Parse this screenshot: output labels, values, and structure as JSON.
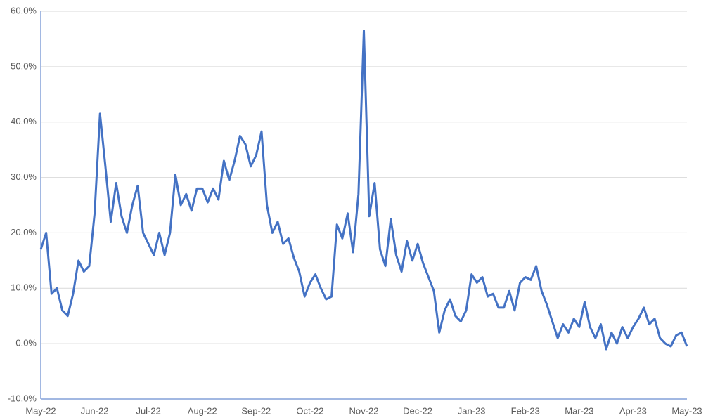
{
  "chart_data": {
    "type": "line",
    "color": "#4472c4",
    "grid": true,
    "categories": [
      "May-22",
      null,
      null,
      null,
      null,
      null,
      null,
      null,
      null,
      null,
      "Jun-22",
      null,
      null,
      null,
      null,
      null,
      null,
      null,
      null,
      null,
      "Jul-22",
      null,
      null,
      null,
      null,
      null,
      null,
      null,
      null,
      null,
      "Aug-22",
      null,
      null,
      null,
      null,
      null,
      null,
      null,
      null,
      null,
      "Sep-22",
      null,
      null,
      null,
      null,
      null,
      null,
      null,
      null,
      null,
      "Oct-22",
      null,
      null,
      null,
      null,
      null,
      null,
      null,
      null,
      null,
      "Nov-22",
      null,
      null,
      null,
      null,
      null,
      null,
      null,
      null,
      null,
      "Dec-22",
      null,
      null,
      null,
      null,
      null,
      null,
      null,
      null,
      null,
      "Jan-23",
      null,
      null,
      null,
      null,
      null,
      null,
      null,
      null,
      null,
      "Feb-23",
      null,
      null,
      null,
      null,
      null,
      null,
      null,
      null,
      null,
      "Mar-23",
      null,
      null,
      null,
      null,
      null,
      null,
      null,
      null,
      null,
      "Apr-23",
      null,
      null,
      null,
      null,
      null,
      null,
      null,
      null,
      null,
      "May-23"
    ],
    "values": [
      17,
      20,
      9,
      10,
      6,
      5,
      9,
      15,
      13,
      14,
      23.5,
      41.5,
      32,
      22,
      29,
      23,
      20,
      25,
      28.5,
      20,
      18,
      16,
      20,
      16,
      20,
      30.5,
      25,
      27,
      24,
      28,
      28,
      25.5,
      28,
      26,
      33,
      29.5,
      33,
      37.5,
      36,
      32,
      34,
      38.3,
      25,
      20,
      22,
      18,
      19,
      15.5,
      13,
      8.5,
      11,
      12.5,
      10,
      8,
      8.5,
      21.5,
      19,
      23.5,
      16.5,
      27,
      56.5,
      23,
      29,
      17,
      14,
      22.5,
      16,
      13,
      18.5,
      15,
      18,
      14.5,
      12,
      9.5,
      2,
      6,
      8,
      5,
      4,
      6,
      12.5,
      11,
      12,
      8.5,
      9,
      6.5,
      6.5,
      9.5,
      6,
      11,
      12,
      11.5,
      14,
      9.5,
      7,
      4,
      1,
      3.5,
      2,
      4.5,
      3,
      7.5,
      3,
      1,
      3.5,
      -1,
      2,
      0,
      3,
      1,
      3,
      4.5,
      6.5,
      3.5,
      4.5,
      1,
      0,
      -0.5,
      1.5,
      2,
      -0.5
    ],
    "ylim": [
      -10,
      60
    ],
    "yticks": [
      {
        "value": -10,
        "label": "-10.0%"
      },
      {
        "value": 0,
        "label": "0.0%"
      },
      {
        "value": 10,
        "label": "10.0%"
      },
      {
        "value": 20,
        "label": "20.0%"
      },
      {
        "value": 30,
        "label": "30.0%"
      },
      {
        "value": 40,
        "label": "40.0%"
      },
      {
        "value": 50,
        "label": "50.0%"
      },
      {
        "value": 60,
        "label": "60.0%"
      }
    ]
  }
}
